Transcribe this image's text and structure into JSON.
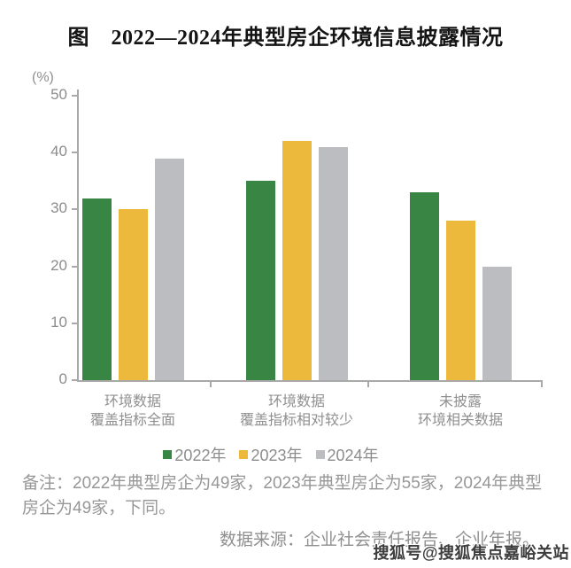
{
  "page": {
    "title": "图　2022—2024年典型房企环境信息披露情况",
    "note": "备注：2022年典型房企为49家，2023年典型房企为55家，2024年典型房企为49家，下同。",
    "source": "数据来源：企业社会责任报告、企业年报。",
    "watermark": "搜狐号@搜狐焦点嘉峪关站"
  },
  "chart_data": {
    "type": "bar",
    "title": "图 2022—2024年典型房企环境信息披露情况",
    "unit_label": "(%)",
    "xlabel": "",
    "ylabel": "(%)",
    "ylim": [
      0,
      50
    ],
    "yticks": [
      0,
      10,
      20,
      30,
      40,
      50
    ],
    "grid": false,
    "legend_position": "bottom",
    "axis_color": "#a9a9a9",
    "label_color": "#8f8f8f",
    "categories": [
      [
        "环境数据",
        "覆盖指标全面"
      ],
      [
        "环境数据",
        "覆盖指标相对较少"
      ],
      [
        "未披露",
        "环境相关数据"
      ]
    ],
    "series": [
      {
        "name": "2022年",
        "color": "#388544",
        "values": [
          32,
          35,
          33
        ]
      },
      {
        "name": "2023年",
        "color": "#ECB93D",
        "values": [
          30,
          42,
          28
        ]
      },
      {
        "name": "2024年",
        "color": "#BBBDC0",
        "values": [
          39,
          41,
          20
        ]
      }
    ]
  }
}
